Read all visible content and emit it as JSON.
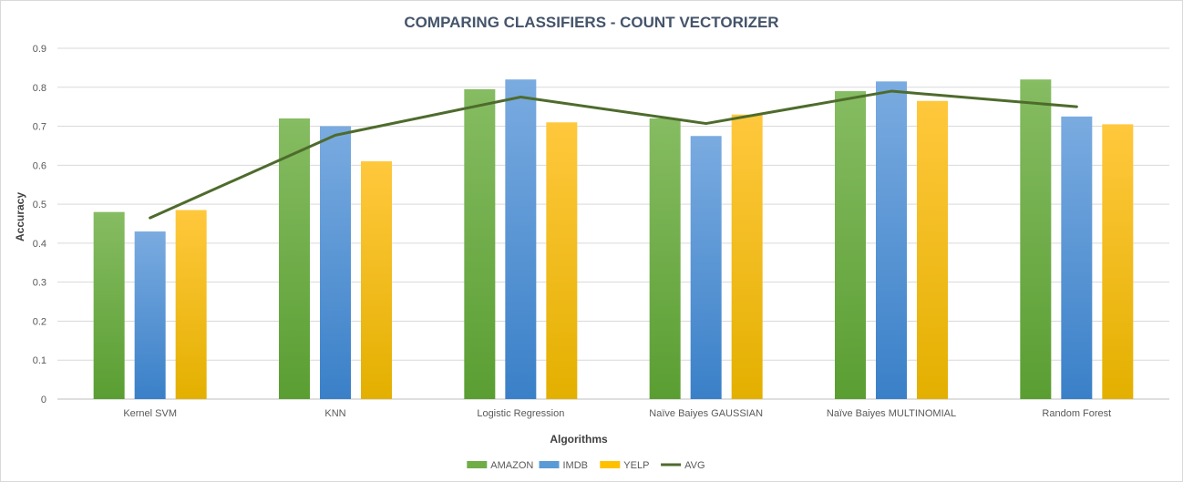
{
  "chart_data": {
    "type": "bar",
    "title": "COMPARING CLASSIFIERS - COUNT VECTORIZER",
    "xlabel": "Algorithms",
    "ylabel": "Accuracy",
    "ylim": [
      0,
      0.9
    ],
    "yticks": [
      "0",
      "0.1",
      "0.2",
      "0.3",
      "0.4",
      "0.5",
      "0.6",
      "0.7",
      "0.8",
      "0.9"
    ],
    "ytick_values": [
      0,
      0.1,
      0.2,
      0.3,
      0.4,
      0.5,
      0.6,
      0.7,
      0.8,
      0.9
    ],
    "grid": true,
    "legend_position": "bottom",
    "categories": [
      "Kernel SVM",
      "KNN",
      "Logistic Regression",
      "Naïve Baiyes GAUSSIAN",
      "Naïve Baiyes MULTINOMIAL",
      "Random Forest"
    ],
    "series": [
      {
        "name": "AMAZON",
        "type": "bar",
        "color_top": "#86bc62",
        "color_bottom": "#5a9e32",
        "legend_color": "#70ad47",
        "values": [
          0.48,
          0.72,
          0.795,
          0.72,
          0.79,
          0.82
        ]
      },
      {
        "name": "IMDB",
        "type": "bar",
        "color_top": "#7aabe0",
        "color_bottom": "#3a80c8",
        "legend_color": "#5b9bd5",
        "values": [
          0.43,
          0.7,
          0.82,
          0.675,
          0.815,
          0.725
        ]
      },
      {
        "name": "YELP",
        "type": "bar",
        "color_top": "#ffc83d",
        "color_bottom": "#e3b000",
        "legend_color": "#ffc000",
        "values": [
          0.485,
          0.61,
          0.71,
          0.73,
          0.765,
          0.705
        ]
      },
      {
        "name": "AVG",
        "type": "line",
        "color": "#4e6b2c",
        "values": [
          0.465,
          0.677,
          0.775,
          0.707,
          0.79,
          0.75
        ]
      }
    ]
  }
}
